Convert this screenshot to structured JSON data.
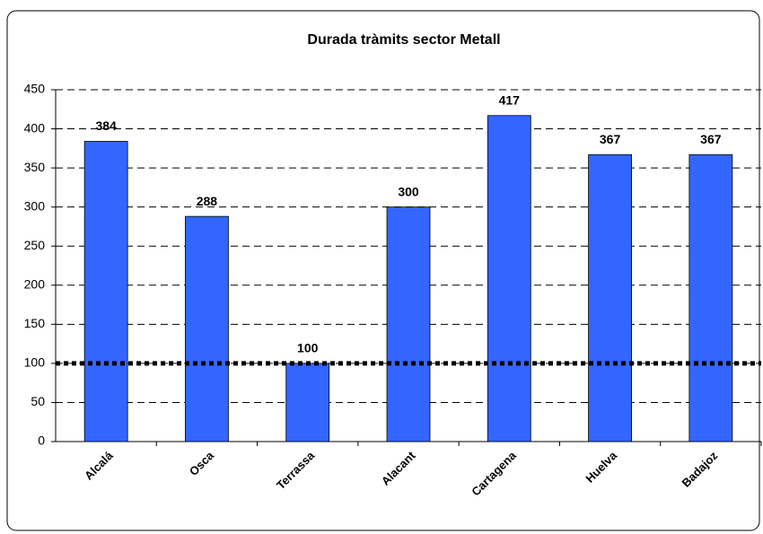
{
  "chart_data": {
    "type": "bar",
    "title": "Durada tràmits sector Metall",
    "categories": [
      "Alcalá",
      "Osca",
      "Terrassa",
      "Alacant",
      "Cartagena",
      "Huelva",
      "Badajoz"
    ],
    "values": [
      384,
      288,
      100,
      300,
      417,
      367,
      367
    ],
    "color": "#3366ff",
    "ylim": [
      0,
      450
    ],
    "yticks": [
      0,
      50,
      100,
      150,
      200,
      250,
      300,
      350,
      400,
      450
    ],
    "grid": true,
    "reference_line": 100
  }
}
